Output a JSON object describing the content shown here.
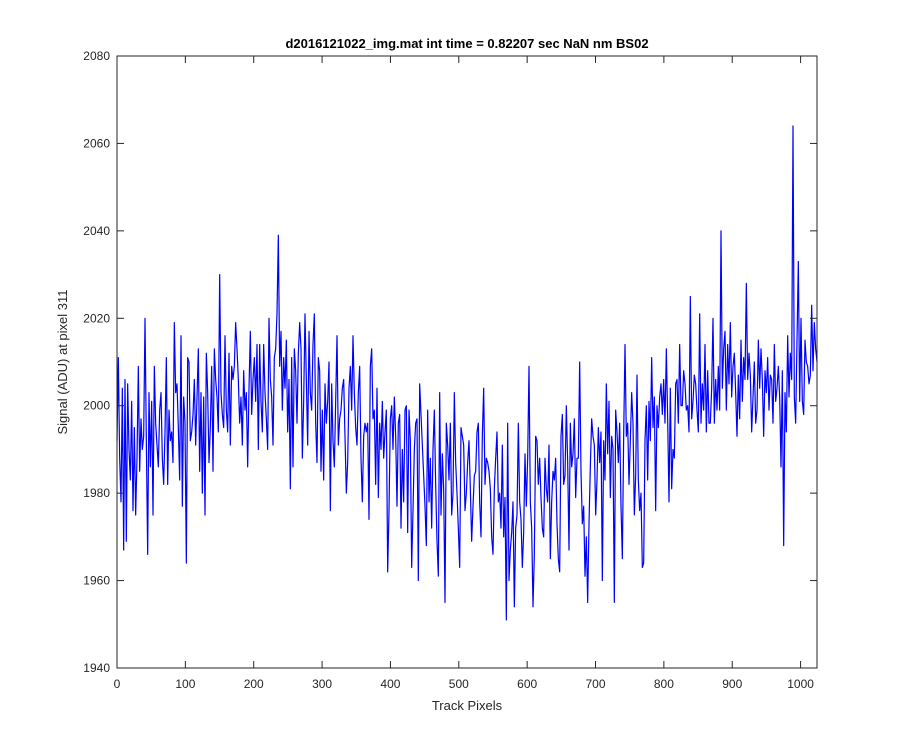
{
  "chart_data": {
    "type": "line",
    "title": "d2016121022_img.mat int time = 0.82207 sec  NaN nm BS02",
    "xlabel": "Track Pixels",
    "ylabel": "Signal (ADU) at pixel 311",
    "xlim": [
      0,
      1024
    ],
    "ylim": [
      1940,
      2080
    ],
    "xticks": [
      0,
      100,
      200,
      300,
      400,
      500,
      600,
      700,
      800,
      900,
      1000
    ],
    "yticks": [
      1940,
      1960,
      1980,
      2000,
      2020,
      2040,
      2060,
      2080
    ],
    "grid": false,
    "line_color": "#0000ff",
    "series": [
      {
        "values": [
          1992,
          2011,
          1988,
          1978,
          2004,
          1967,
          2006,
          1969,
          2005,
          1990,
          1983,
          2001,
          1976,
          1995,
          1975,
          1988,
          2009,
          1985,
          1997,
          1990,
          1993,
          2020,
          1992,
          1966,
          2003,
          1986,
          2001,
          1975,
          2009,
          1996,
          1991,
          1986,
          1999,
          2003,
          1988,
          1982,
          1994,
          2011,
          1982,
          1999,
          1992,
          1994,
          1987,
          2019,
          2003,
          2005,
          1995,
          1983,
          2016,
          1977,
          2002,
          1996,
          1964,
          2011,
          2010,
          1992,
          1994,
          1998,
          2006,
          1991,
          2002,
          2013,
          1985,
          2003,
          1980,
          2002,
          1975,
          2012,
          2003,
          1987,
          1995,
          2009,
          1985,
          2013,
          2006,
          2002,
          1994,
          2030,
          2003,
          1998,
          1995,
          2016,
          1999,
          1994,
          2012,
          1991,
          2009,
          2006,
          2009,
          2019,
          2013,
          2006,
          1996,
          2002,
          1991,
          2008,
          1999,
          2003,
          1986,
          2004,
          2017,
          1998,
          2006,
          2011,
          2001,
          2014,
          1990,
          2014,
          2001,
          1994,
          2014,
          2003,
          1997,
          1990,
          2020,
          2006,
          2002,
          1991,
          2011,
          2013,
          2021,
          2039,
          2009,
          2017,
          1999,
          2011,
          2004,
          2015,
          1994,
          2006,
          1981,
          2011,
          1986,
          2013,
          2008,
          1996,
          2012,
          2019,
          2013,
          1988,
          2001,
          2021,
          2006,
          1991,
          2017,
          2003,
          1999,
          2014,
          2021,
          1996,
          1987,
          2011,
          2008,
          1985,
          1999,
          1983,
          2005,
          1996,
          2001,
          2010,
          1976,
          2005,
          1992,
          1986,
          2001,
          2016,
          1991,
          1997,
          1999,
          2004,
          2006,
          1993,
          1980,
          1987,
          2004,
          2009,
          1999,
          2016,
          2003,
          1995,
          1991,
          2003,
          2009,
          1988,
          1978,
          1993,
          1996,
          1994,
          1996,
          1974,
          2009,
          2013,
          1997,
          1999,
          1982,
          2004,
          1979,
          1996,
          1990,
          2001,
          1988,
          1994,
          1999,
          1962,
          1976,
          1997,
          2000,
          1990,
          2002,
          1993,
          1977,
          1996,
          1998,
          1972,
          1990,
          1978,
          1999,
          2000,
          1971,
          1999,
          1992,
          1963,
          1976,
          1990,
          1996,
          1997,
          1960,
          2005,
          1998,
          1991,
          1984,
          1977,
          1968,
          1999,
          1978,
          1988,
          1972,
          1990,
          1999,
          1982,
          1969,
          1961,
          2003,
          1975,
          1989,
          1981,
          1955,
          1996,
          1991,
          1983,
          1996,
          1975,
          1980,
          2003,
          1987,
          1980,
          1972,
          1963,
          1995,
          1993,
          1991,
          1976,
          1980,
          1987,
          1992,
          1981,
          1969,
          1977,
          1984,
          1985,
          1994,
          1996,
          1978,
          1970,
          1993,
          2004,
          1982,
          1988,
          1987,
          1985,
          1981,
          1970,
          1966,
          1981,
          1988,
          1994,
          1978,
          1980,
          1972,
          1991,
          1970,
          1979,
          1951,
          1996,
          1960,
          1967,
          1971,
          1978,
          1954,
          1972,
          1975,
          1996,
          1978,
          1974,
          1963,
          1971,
          1989,
          1977,
          1988,
          2009,
          1978,
          1972,
          1954,
          1966,
          1993,
          1992,
          1982,
          1988,
          1979,
          1972,
          1970,
          1988,
          1981,
          1978,
          1991,
          1965,
          1978,
          1985,
          1983,
          1988,
          1973,
          1965,
          1962,
          1993,
          1998,
          1982,
          1984,
          2000,
          1987,
          1967,
          1996,
          1986,
          1989,
          1997,
          1979,
          1988,
          1988,
          2010,
          1985,
          1973,
          1977,
          1961,
          1970,
          1955,
          1973,
          1986,
          1997,
          1993,
          1991,
          1975,
          1983,
          1995,
          1987,
          1994,
          1960,
          1992,
          1983,
          2005,
          1989,
          2001,
          1979,
          1993,
          1990,
          1955,
          1999,
          1994,
          1987,
          1996,
          1977,
          1965,
          1993,
          2014,
          1993,
          1996,
          1982,
          1992,
          2003,
          1996,
          1975,
          1984,
          2007,
          1983,
          1976,
          1980,
          1963,
          1964,
          1992,
          2000,
          1983,
          2001,
          1992,
          2011,
          1995,
          2002,
          1976,
          2000,
          1995,
          2002,
          2005,
          1998,
          2006,
          1996,
          2013,
          1997,
          1978,
          2004,
          1981,
          1990,
          1988,
          2005,
          2006,
          1996,
          2014,
          2000,
          2000,
          2008,
          2005,
          1999,
          2000,
          1994,
          2025,
          1997,
          2001,
          2007,
          2005,
          1999,
          1994,
          2021,
          1996,
          2005,
          1999,
          2014,
          1994,
          2008,
          1996,
          1996,
          2004,
          2020,
          1996,
          2006,
          1999,
          2009,
          1999,
          2040,
          2004,
          2013,
          2017,
          1999,
          2014,
          2005,
          2019,
          2002,
          2009,
          2012,
          2003,
          1993,
          2007,
          1997,
          2015,
          2001,
          2011,
          2006,
          2028,
          2006,
          2012,
          2007,
          1994,
          2002,
          2010,
          1996,
          1999,
          2015,
          2004,
          2013,
          2006,
          1993,
          2008,
          2003,
          2011,
          1999,
          2007,
          2006,
          1996,
          2014,
          2001,
          2004,
          2009,
          2002,
          1986,
          2008,
          1968,
          2003,
          1994,
          2016,
          2002,
          2012,
          2006,
          2064,
          2002,
          1996,
          2015,
          2033,
          2001,
          2020,
          2001,
          1998,
          2015,
          2010,
          2009,
          2005,
          2007,
          2023,
          2008,
          2019,
          2013,
          2010
        ]
      }
    ]
  }
}
